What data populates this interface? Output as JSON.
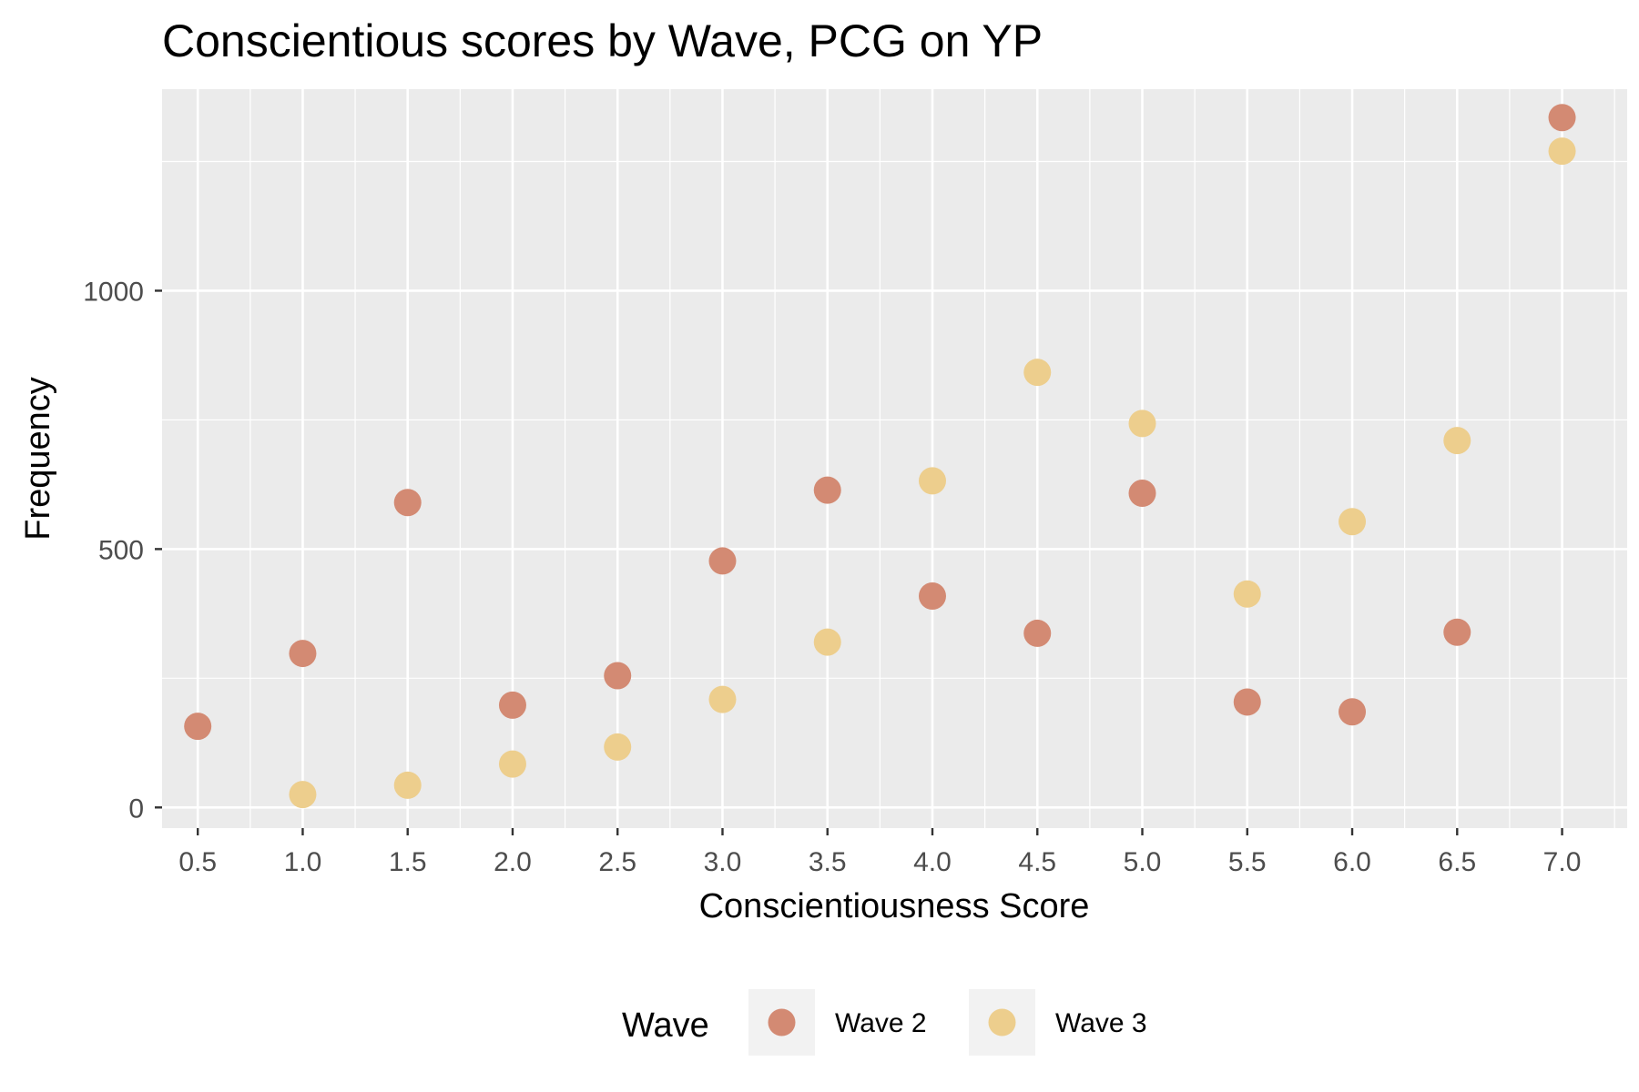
{
  "chart_data": {
    "type": "scatter",
    "title": "Conscientious scores by Wave, PCG on YP",
    "xlabel": "Conscientiousness Score",
    "ylabel": "Frequency",
    "xlim": [
      0.33,
      7.31
    ],
    "ylim": [
      -40,
      1390
    ],
    "x_ticks": [
      0.5,
      1.0,
      1.5,
      2.0,
      2.5,
      3.0,
      3.5,
      4.0,
      4.5,
      5.0,
      5.5,
      6.0,
      6.5,
      7.0
    ],
    "x_tick_labels": [
      "0.5",
      "1.0",
      "1.5",
      "2.0",
      "2.5",
      "3.0",
      "3.5",
      "4.0",
      "4.5",
      "5.0",
      "5.5",
      "6.0",
      "6.5",
      "7.0"
    ],
    "y_ticks": [
      0,
      500,
      1000
    ],
    "y_tick_labels": [
      "0",
      "500",
      "1000"
    ],
    "y_minor_ticks": [
      250,
      750,
      1250
    ],
    "grid": true,
    "legend": {
      "title": "Wave",
      "position": "bottom"
    },
    "series": [
      {
        "name": "Wave 2",
        "color": "#D38A73",
        "points": [
          {
            "x": 0.5,
            "y": 157
          },
          {
            "x": 1.0,
            "y": 298
          },
          {
            "x": 1.5,
            "y": 590
          },
          {
            "x": 2.0,
            "y": 198
          },
          {
            "x": 2.5,
            "y": 255
          },
          {
            "x": 3.0,
            "y": 477
          },
          {
            "x": 3.5,
            "y": 614
          },
          {
            "x": 4.0,
            "y": 409
          },
          {
            "x": 4.5,
            "y": 337
          },
          {
            "x": 5.0,
            "y": 608
          },
          {
            "x": 5.5,
            "y": 204
          },
          {
            "x": 6.0,
            "y": 185
          },
          {
            "x": 6.5,
            "y": 339
          },
          {
            "x": 7.0,
            "y": 1335
          }
        ]
      },
      {
        "name": "Wave 3",
        "color": "#EDCE8D",
        "points": [
          {
            "x": 1.0,
            "y": 25
          },
          {
            "x": 1.5,
            "y": 43
          },
          {
            "x": 2.0,
            "y": 84
          },
          {
            "x": 2.5,
            "y": 117
          },
          {
            "x": 3.0,
            "y": 209
          },
          {
            "x": 3.5,
            "y": 320
          },
          {
            "x": 4.0,
            "y": 632
          },
          {
            "x": 4.5,
            "y": 842
          },
          {
            "x": 5.0,
            "y": 743
          },
          {
            "x": 5.5,
            "y": 413
          },
          {
            "x": 6.0,
            "y": 553
          },
          {
            "x": 6.5,
            "y": 710
          },
          {
            "x": 7.0,
            "y": 1270
          }
        ]
      }
    ]
  }
}
